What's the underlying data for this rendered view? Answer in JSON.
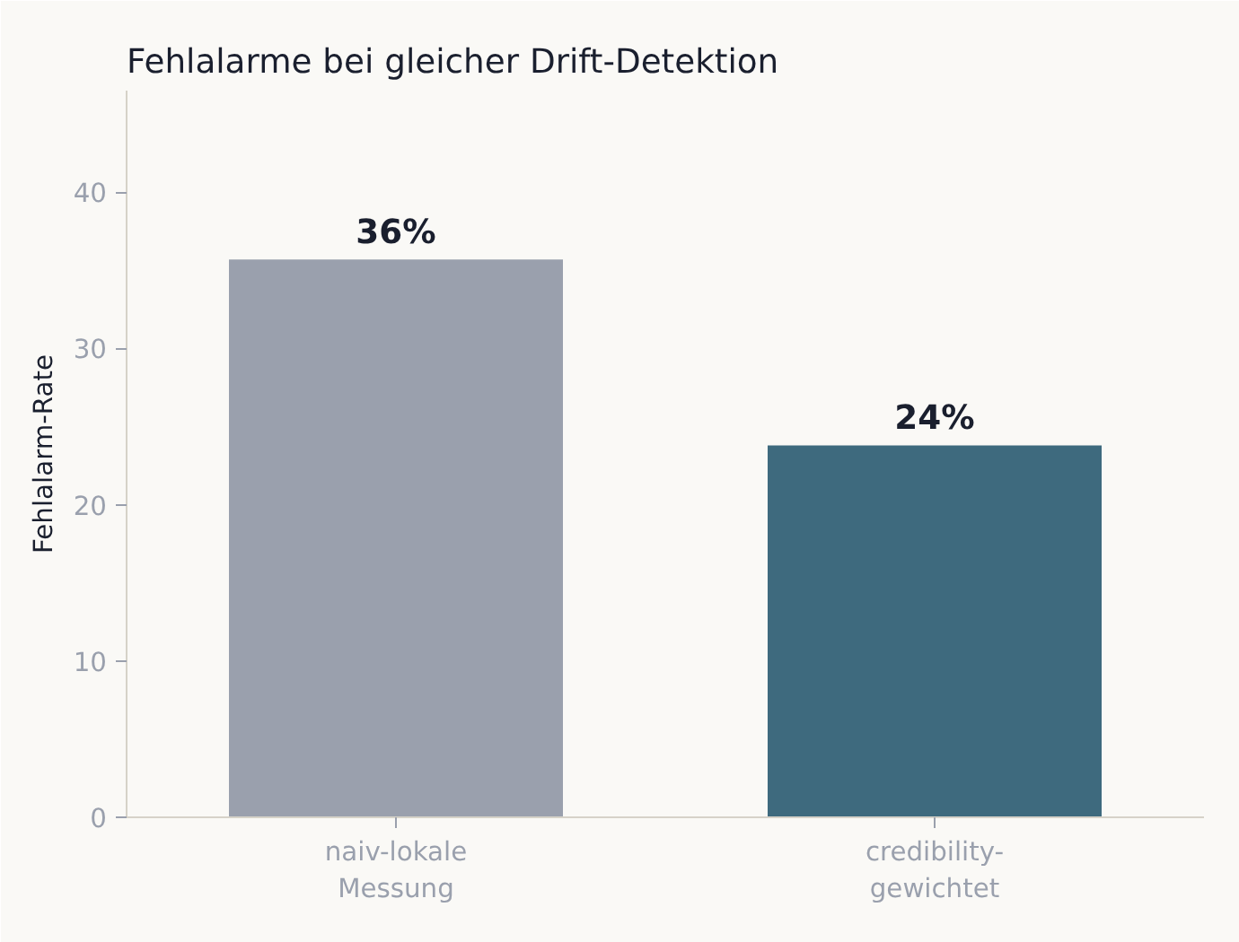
{
  "chart_data": {
    "type": "bar",
    "title": "Fehlalarme bei gleicher Drift-Detektion",
    "ylabel": "Fehlalarm-Rate",
    "categories": [
      "naiv-lokale\nMessung",
      "credibility-\ngewichtet"
    ],
    "values": [
      35.7,
      23.8
    ],
    "colors": [
      "#9aa0ad",
      "#3e6a7e"
    ],
    "value_labels": [
      "36%",
      "24%"
    ],
    "ylim": [
      0,
      46.5
    ],
    "yticks": [
      0,
      10,
      20,
      30,
      40
    ],
    "grid": false
  }
}
